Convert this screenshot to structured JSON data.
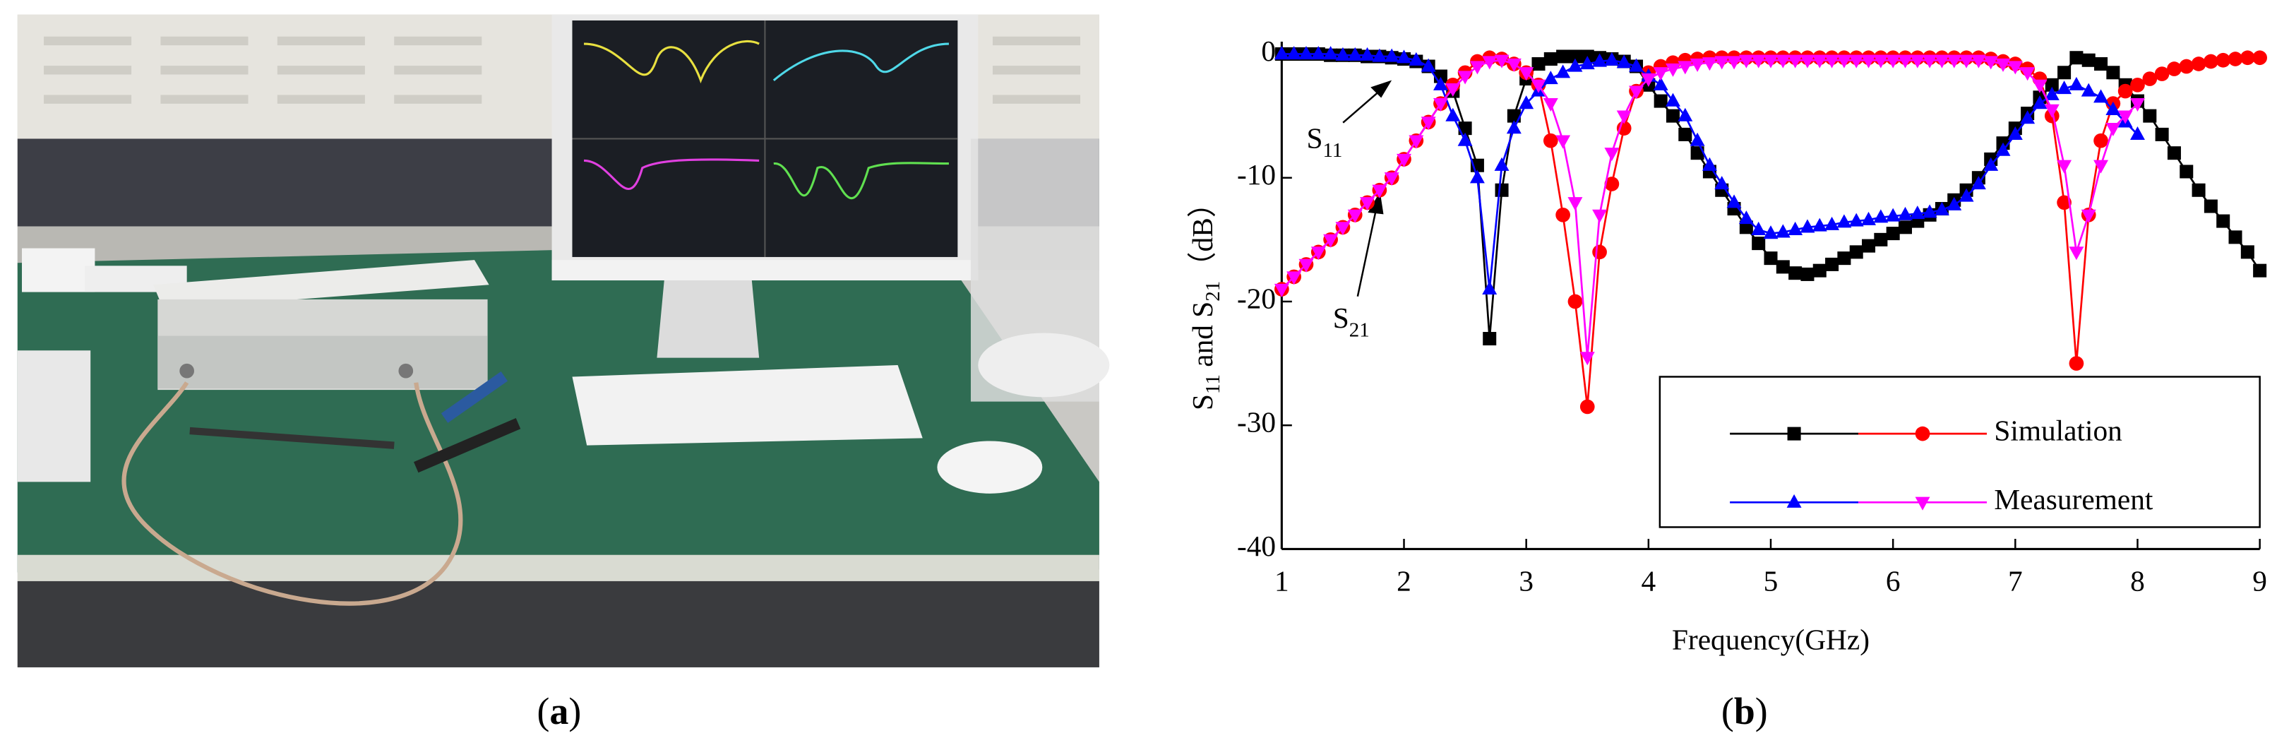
{
  "chart_data": {
    "type": "line",
    "xlabel": "Frequency(GHz)",
    "ylabel": [
      {
        "text": "S",
        "sub": "11"
      },
      {
        "text": " and S",
        "sub": "21"
      },
      {
        "text": "（dB）"
      }
    ],
    "annotations": [
      {
        "text": "S",
        "sub": "11"
      },
      {
        "text": "S",
        "sub": "21"
      }
    ],
    "x": [
      1,
      1.1,
      1.2,
      1.3,
      1.4,
      1.5,
      1.6,
      1.7,
      1.8,
      1.9,
      2,
      2.1,
      2.2,
      2.3,
      2.4,
      2.5,
      2.6,
      2.7,
      2.8,
      2.9,
      3,
      3.1,
      3.2,
      3.3,
      3.4,
      3.5,
      3.6,
      3.7,
      3.8,
      3.9,
      4,
      4.1,
      4.2,
      4.3,
      4.4,
      4.5,
      4.6,
      4.7,
      4.8,
      4.9,
      5,
      5.1,
      5.2,
      5.3,
      5.4,
      5.5,
      5.6,
      5.7,
      5.8,
      5.9,
      6,
      6.1,
      6.2,
      6.3,
      6.4,
      6.5,
      6.6,
      6.7,
      6.8,
      6.9,
      7,
      7.1,
      7.2,
      7.3,
      7.4,
      7.5,
      7.6,
      7.7,
      7.8,
      7.9,
      8,
      8.1,
      8.2,
      8.3,
      8.4,
      8.5,
      8.6,
      8.7,
      8.8,
      8.9,
      9
    ],
    "series": [
      {
        "color": "#000000",
        "marker": "square",
        "values": [
          0,
          0,
          0,
          0,
          -0.1,
          -0.1,
          -0.1,
          -0.2,
          -0.2,
          -0.3,
          -0.4,
          -0.6,
          -1,
          -1.8,
          -3,
          -6,
          -9,
          -23,
          -11,
          -5,
          -2,
          -0.8,
          -0.4,
          -0.2,
          -0.2,
          -0.2,
          -0.3,
          -0.4,
          -0.6,
          -1,
          -2.5,
          -3.8,
          -5,
          -6.5,
          -8,
          -9.5,
          -11,
          -12.5,
          -14,
          -15.3,
          -16.5,
          -17.2,
          -17.7,
          -17.8,
          -17.5,
          -17,
          -16.5,
          -16,
          -15.5,
          -15,
          -14.5,
          -14,
          -13.5,
          -13,
          -12.5,
          -11.8,
          -11,
          -10,
          -8.5,
          -7.2,
          -6,
          -4.8,
          -3.5,
          -2.5,
          -1.5,
          -0.3,
          -0.5,
          -0.8,
          -1.5,
          -2.5,
          -3.8,
          -5,
          -6.5,
          -8,
          -9.5,
          -11,
          -12.3,
          -13.5,
          -14.8,
          -16,
          -17.5
        ]
      },
      {
        "name": "Simulation",
        "color": "#ff0000",
        "marker": "circle",
        "values": [
          -19,
          -18,
          -17,
          -16,
          -15,
          -14,
          -13,
          -12,
          -11,
          -10,
          -8.5,
          -7,
          -5.5,
          -4,
          -2.5,
          -1.5,
          -0.6,
          -0.3,
          -0.4,
          -0.8,
          -1.5,
          -2.5,
          -7,
          -13,
          -20,
          -28.5,
          -16,
          -10.5,
          -6,
          -3,
          -1.5,
          -1,
          -0.7,
          -0.5,
          -0.4,
          -0.3,
          -0.3,
          -0.3,
          -0.3,
          -0.3,
          -0.3,
          -0.3,
          -0.3,
          -0.3,
          -0.3,
          -0.3,
          -0.3,
          -0.3,
          -0.3,
          -0.3,
          -0.3,
          -0.3,
          -0.3,
          -0.3,
          -0.3,
          -0.3,
          -0.3,
          -0.3,
          -0.4,
          -0.6,
          -0.8,
          -1.2,
          -2,
          -5,
          -12,
          -25,
          -13,
          -7,
          -4,
          -3,
          -2.5,
          -2,
          -1.6,
          -1.2,
          -1,
          -0.8,
          -0.6,
          -0.5,
          -0.4,
          -0.3,
          -0.3
        ]
      },
      {
        "color": "#0000ff",
        "marker": "triangle-up",
        "values": [
          0,
          0,
          0,
          0,
          0,
          -0.1,
          -0.1,
          -0.1,
          -0.2,
          -0.2,
          -0.3,
          -0.5,
          -1,
          -2.5,
          -5,
          -7,
          -10,
          -19,
          -9,
          -6,
          -4,
          -3,
          -2,
          -1.5,
          -1,
          -0.8,
          -0.6,
          -0.5,
          -0.7,
          -1,
          -1.8,
          -2.5,
          -3.8,
          -5,
          -7,
          -9,
          -10.5,
          -12,
          -13.3,
          -14.2,
          -14.5,
          -14.4,
          -14.2,
          -14,
          -13.9,
          -13.8,
          -13.6,
          -13.5,
          -13.4,
          -13.2,
          -13.1,
          -13,
          -12.9,
          -12.8,
          -12.6,
          -12.2,
          -11.5,
          -10.5,
          -9,
          -7.8,
          -6.5,
          -5.2,
          -4,
          -3.3,
          -2.8,
          -2.5,
          -3,
          -3.5,
          -4.5,
          -5.5,
          -6.5,
          null,
          null,
          null,
          null,
          null,
          null,
          null,
          null,
          null,
          null
        ]
      },
      {
        "name": "Measurement",
        "color": "#ff00ff",
        "marker": "triangle-down",
        "values": [
          -19,
          -18,
          -17,
          -16,
          -15,
          -14,
          -13,
          -12,
          -11,
          -10,
          -8.5,
          -7,
          -5.5,
          -4,
          -2.8,
          -1.8,
          -1,
          -0.6,
          -0.5,
          -0.8,
          -1.5,
          -2.5,
          -4,
          -7,
          -12,
          -24.5,
          -13,
          -8,
          -5,
          -3,
          -2,
          -1.5,
          -1.2,
          -1,
          -0.8,
          -0.7,
          -0.6,
          -0.6,
          -0.5,
          -0.5,
          -0.5,
          -0.5,
          -0.5,
          -0.5,
          -0.5,
          -0.5,
          -0.5,
          -0.5,
          -0.5,
          -0.5,
          -0.5,
          -0.5,
          -0.5,
          -0.5,
          -0.5,
          -0.5,
          -0.5,
          -0.5,
          -0.6,
          -0.8,
          -1,
          -1.5,
          -2.5,
          -4.5,
          -9,
          -16,
          -13,
          -9,
          -6,
          -5,
          -4,
          null,
          null,
          null,
          null,
          null,
          null,
          null,
          null,
          null,
          null
        ]
      }
    ],
    "xlim": [
      1,
      9
    ],
    "xticks": [
      1,
      2,
      3,
      4,
      5,
      6,
      7,
      8,
      9
    ],
    "ylim": [
      -40,
      1
    ],
    "yticks": [
      -40,
      -30,
      -20,
      -10,
      0
    ],
    "captions": [
      [
        "(",
        "a",
        ")"
      ],
      [
        "(",
        "b",
        ")"
      ]
    ]
  }
}
